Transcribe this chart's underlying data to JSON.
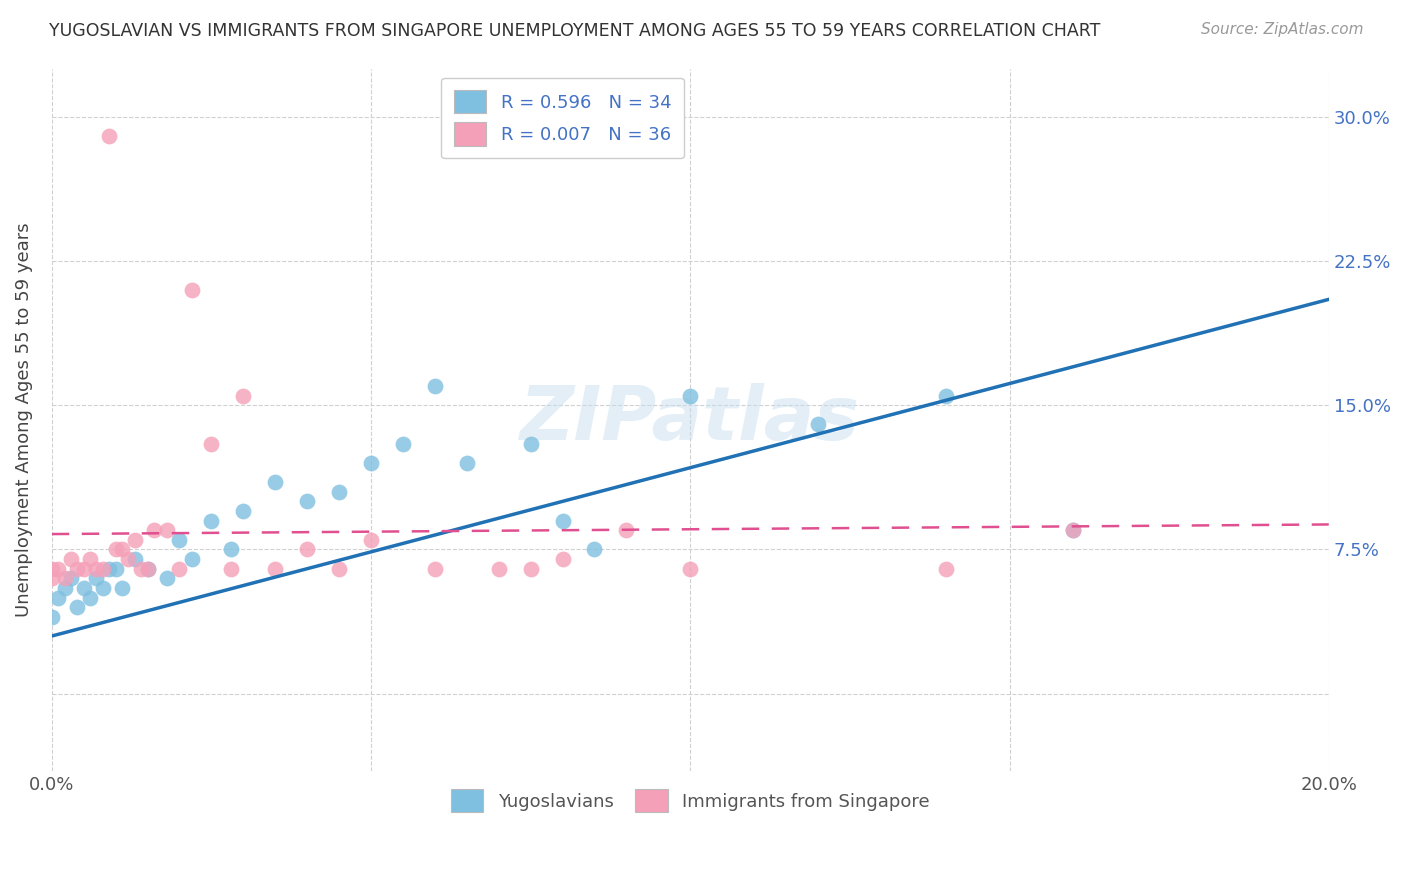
{
  "title": "YUGOSLAVIAN VS IMMIGRANTS FROM SINGAPORE UNEMPLOYMENT AMONG AGES 55 TO 59 YEARS CORRELATION CHART",
  "source": "Source: ZipAtlas.com",
  "ylabel": "Unemployment Among Ages 55 to 59 years",
  "legend_label1": "Yugoslavians",
  "legend_label2": "Immigrants from Singapore",
  "r1": 0.596,
  "n1": 34,
  "r2": 0.007,
  "n2": 36,
  "xmin": 0.0,
  "xmax": 0.2,
  "ymin": -0.04,
  "ymax": 0.325,
  "ytick_vals": [
    0.0,
    0.075,
    0.15,
    0.225,
    0.3
  ],
  "color_blue": "#7fbfdf",
  "color_pink": "#f4a0b8",
  "trend_color_blue": "#2171b5",
  "trend_color_pink": "#e05090",
  "background_color": "#ffffff",
  "watermark": "ZIPatlas",
  "blue_x": [
    0.0,
    0.001,
    0.002,
    0.003,
    0.004,
    0.005,
    0.006,
    0.007,
    0.008,
    0.009,
    0.01,
    0.011,
    0.013,
    0.015,
    0.018,
    0.02,
    0.022,
    0.025,
    0.028,
    0.03,
    0.035,
    0.04,
    0.045,
    0.05,
    0.055,
    0.06,
    0.065,
    0.075,
    0.08,
    0.085,
    0.1,
    0.12,
    0.14,
    0.16
  ],
  "blue_y": [
    0.04,
    0.05,
    0.055,
    0.06,
    0.045,
    0.055,
    0.05,
    0.06,
    0.055,
    0.065,
    0.065,
    0.055,
    0.07,
    0.065,
    0.06,
    0.08,
    0.07,
    0.09,
    0.075,
    0.095,
    0.11,
    0.1,
    0.105,
    0.12,
    0.13,
    0.16,
    0.12,
    0.13,
    0.09,
    0.075,
    0.155,
    0.14,
    0.155,
    0.085
  ],
  "pink_x": [
    0.0,
    0.0,
    0.001,
    0.002,
    0.003,
    0.004,
    0.005,
    0.006,
    0.007,
    0.008,
    0.009,
    0.01,
    0.011,
    0.012,
    0.013,
    0.014,
    0.015,
    0.016,
    0.018,
    0.02,
    0.022,
    0.025,
    0.028,
    0.03,
    0.035,
    0.04,
    0.045,
    0.05,
    0.06,
    0.07,
    0.075,
    0.08,
    0.09,
    0.1,
    0.14,
    0.16
  ],
  "pink_y": [
    0.06,
    0.065,
    0.065,
    0.06,
    0.07,
    0.065,
    0.065,
    0.07,
    0.065,
    0.065,
    0.29,
    0.075,
    0.075,
    0.07,
    0.08,
    0.065,
    0.065,
    0.085,
    0.085,
    0.065,
    0.21,
    0.13,
    0.065,
    0.155,
    0.065,
    0.075,
    0.065,
    0.08,
    0.065,
    0.065,
    0.065,
    0.07,
    0.085,
    0.065,
    0.065,
    0.085
  ],
  "blue_trend_x0": 0.0,
  "blue_trend_y0": 0.03,
  "blue_trend_x1": 0.2,
  "blue_trend_y1": 0.205,
  "pink_trend_x0": 0.0,
  "pink_trend_y0": 0.083,
  "pink_trend_x1": 0.2,
  "pink_trend_y1": 0.088
}
